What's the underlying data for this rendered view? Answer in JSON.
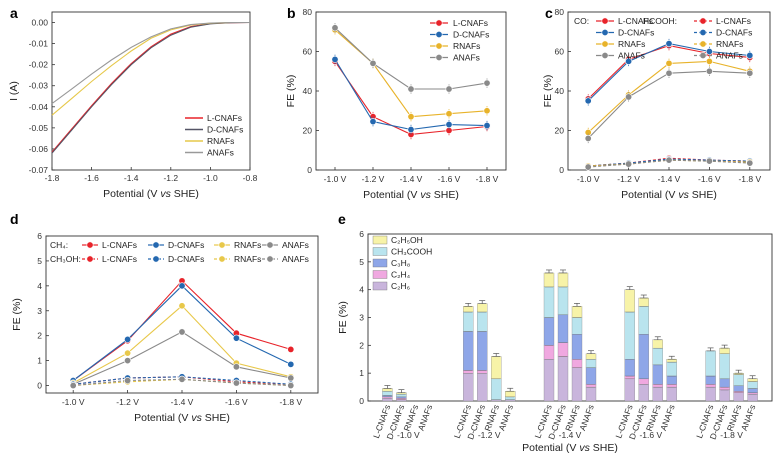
{
  "panels": [
    {
      "id": "a",
      "letter": "a",
      "chart_data": {
        "type": "line",
        "xlabel": "Potential (V vs SHE)",
        "ylabel": "I (A)",
        "xlim": [
          -1.8,
          -0.8
        ],
        "ylim": [
          -0.07,
          0.005
        ],
        "xticks": [
          "-1.8",
          "-1.6",
          "-1.4",
          "-1.2",
          "-1.0",
          "-0.8"
        ],
        "yticks": [
          "0.00",
          "-0.01",
          "-0.02",
          "-0.03",
          "-0.04",
          "-0.05",
          "-0.06",
          "-0.07"
        ],
        "series": [
          {
            "name": "L-CNAFs",
            "color": "#e8232a",
            "points": [
              [
                -1.8,
                -0.0615
              ],
              [
                -1.7,
                -0.0505
              ],
              [
                -1.6,
                -0.0395
              ],
              [
                -1.5,
                -0.029
              ],
              [
                -1.4,
                -0.0195
              ],
              [
                -1.3,
                -0.0115
              ],
              [
                -1.2,
                -0.0055
              ],
              [
                -1.1,
                -0.002
              ],
              [
                -1.0,
                -0.0005
              ],
              [
                -0.9,
                -0.0001
              ],
              [
                -0.8,
                0.0
              ]
            ]
          },
          {
            "name": "D-CNAFs",
            "color": "#555566",
            "points": [
              [
                -1.8,
                -0.062
              ],
              [
                -1.7,
                -0.051
              ],
              [
                -1.6,
                -0.04
              ],
              [
                -1.5,
                -0.0295
              ],
              [
                -1.4,
                -0.02
              ],
              [
                -1.3,
                -0.012
              ],
              [
                -1.2,
                -0.006
              ],
              [
                -1.1,
                -0.0022
              ],
              [
                -1.0,
                -0.0006
              ],
              [
                -0.9,
                -0.0001
              ],
              [
                -0.8,
                0.0
              ]
            ]
          },
          {
            "name": "RNAFs",
            "color": "#e6c84a",
            "points": [
              [
                -1.8,
                -0.044
              ],
              [
                -1.7,
                -0.036
              ],
              [
                -1.6,
                -0.028
              ],
              [
                -1.5,
                -0.0205
              ],
              [
                -1.4,
                -0.0135
              ],
              [
                -1.3,
                -0.0075
              ],
              [
                -1.2,
                -0.0035
              ],
              [
                -1.1,
                -0.0012
              ],
              [
                -1.0,
                -0.0003
              ],
              [
                -0.9,
                0.0
              ],
              [
                -0.8,
                0.0
              ]
            ]
          },
          {
            "name": "ANAFs",
            "color": "#999999",
            "points": [
              [
                -1.8,
                -0.0385
              ],
              [
                -1.7,
                -0.0315
              ],
              [
                -1.6,
                -0.0245
              ],
              [
                -1.5,
                -0.0178
              ],
              [
                -1.4,
                -0.0118
              ],
              [
                -1.3,
                -0.0068
              ],
              [
                -1.2,
                -0.003
              ],
              [
                -1.1,
                -0.001
              ],
              [
                -1.0,
                -0.0002
              ],
              [
                -0.9,
                0.0
              ],
              [
                -0.8,
                0.0
              ]
            ]
          }
        ]
      }
    },
    {
      "id": "b",
      "letter": "b",
      "chart_data": {
        "type": "line",
        "xlabel": "Potential (V vs SHE)",
        "ylabel": "FE (%)",
        "categories": [
          "-1.0 V",
          "-1.2 V",
          "-1.4 V",
          "-1.6 V",
          "-1.8 V"
        ],
        "ylim": [
          0,
          80
        ],
        "yticks": [
          "0",
          "20",
          "40",
          "60",
          "80"
        ],
        "series": [
          {
            "name": "L-CNAFs",
            "color": "#e8232a",
            "values": [
              55,
              27,
              18,
              20,
              22
            ]
          },
          {
            "name": "D-CNAFs",
            "color": "#2468b0",
            "values": [
              56,
              24.5,
              20.5,
              23,
              22.5
            ]
          },
          {
            "name": "RNAFs",
            "color": "#e8b32a",
            "values": [
              71,
              54,
              27,
              28.5,
              30
            ]
          },
          {
            "name": "ANAFs",
            "color": "#8a8a8a",
            "values": [
              72,
              54,
              41,
              41,
              44
            ]
          }
        ]
      }
    },
    {
      "id": "c",
      "letter": "c",
      "chart_data": {
        "type": "line",
        "xlabel": "Potential (V vs SHE)",
        "ylabel": "FE (%)",
        "categories": [
          "-1.0 V",
          "-1.2 V",
          "-1.4 V",
          "-1.6 V",
          "-1.8 V"
        ],
        "ylim": [
          0,
          80
        ],
        "yticks": [
          "0",
          "20",
          "40",
          "60",
          "80"
        ],
        "legend_groups": [
          "CO:",
          "HCOOH:"
        ],
        "series": [
          {
            "name": "L-CNAFs",
            "group": "CO",
            "color": "#e8232a",
            "values": [
              36,
              56,
              63,
              59,
              57
            ],
            "dashed": false
          },
          {
            "name": "D-CNAFs",
            "group": "CO",
            "color": "#2468b0",
            "values": [
              35,
              55,
              64,
              60,
              58
            ],
            "dashed": false
          },
          {
            "name": "RNAFs",
            "group": "CO",
            "color": "#e8b32a",
            "values": [
              19,
              38,
              54,
              55,
              50
            ],
            "dashed": false
          },
          {
            "name": "ANAFs",
            "group": "CO",
            "color": "#8a8a8a",
            "values": [
              16,
              37,
              49,
              50,
              49
            ],
            "dashed": false
          },
          {
            "name": "L-CNAFs",
            "group": "HCOOH",
            "color": "#e8232a",
            "values": [
              2,
              3.5,
              6,
              5,
              4.5
            ],
            "dashed": true
          },
          {
            "name": "D-CNAFs",
            "group": "HCOOH",
            "color": "#2468b0",
            "values": [
              2,
              3.5,
              5.5,
              5,
              4.5
            ],
            "dashed": true
          },
          {
            "name": "RNAFs",
            "group": "HCOOH",
            "color": "#e8b32a",
            "values": [
              2,
              3,
              5,
              4.5,
              4
            ],
            "dashed": true
          },
          {
            "name": "ANAFs",
            "group": "HCOOH",
            "color": "#8a8a8a",
            "values": [
              1.5,
              3,
              5,
              4.5,
              3.5
            ],
            "dashed": true
          }
        ]
      }
    },
    {
      "id": "d",
      "letter": "d",
      "chart_data": {
        "type": "line",
        "xlabel": "Potential (V vs SHE)",
        "ylabel": "FE (%)",
        "categories": [
          "-1.0 V",
          "-1.2 V",
          "-1.4 V",
          "-1.6 V",
          "-1.8 V"
        ],
        "ylim": [
          -0.3,
          6
        ],
        "yticks": [
          "0",
          "1",
          "2",
          "3",
          "4",
          "5",
          "6"
        ],
        "legend_groups": [
          "CH₄:",
          "CH₃OH:"
        ],
        "series": [
          {
            "name": "L-CNAFs",
            "group": "CH4",
            "color": "#e8232a",
            "values": [
              0.2,
              1.8,
              4.2,
              2.1,
              1.45
            ],
            "dashed": false
          },
          {
            "name": "D-CNAFs",
            "group": "CH4",
            "color": "#2468b0",
            "values": [
              0.2,
              1.85,
              4.0,
              1.9,
              0.85
            ],
            "dashed": false
          },
          {
            "name": "RNAFs",
            "group": "CH4",
            "color": "#e8c84a",
            "values": [
              0.1,
              1.3,
              3.2,
              0.9,
              0.35
            ],
            "dashed": false
          },
          {
            "name": "ANAFs",
            "group": "CH4",
            "color": "#8a8a8a",
            "values": [
              0.05,
              1.0,
              2.15,
              0.75,
              0.3
            ],
            "dashed": false
          },
          {
            "name": "L-CNAFs",
            "group": "CH3OH",
            "color": "#e8232a",
            "values": [
              0.05,
              0.3,
              0.35,
              0.15,
              0.05
            ],
            "dashed": true
          },
          {
            "name": "D-CNAFs",
            "group": "CH3OH",
            "color": "#2468b0",
            "values": [
              0.05,
              0.3,
              0.35,
              0.2,
              0.05
            ],
            "dashed": true
          },
          {
            "name": "RNAFs",
            "group": "CH3OH",
            "color": "#e8c84a",
            "values": [
              0.0,
              0.15,
              0.25,
              0.1,
              0.0
            ],
            "dashed": true
          },
          {
            "name": "ANAFs",
            "group": "CH3OH",
            "color": "#8a8a8a",
            "values": [
              0.0,
              0.2,
              0.25,
              0.1,
              0.0
            ],
            "dashed": true
          }
        ]
      }
    },
    {
      "id": "e",
      "letter": "e",
      "chart_data": {
        "type": "bar",
        "stacked": true,
        "xlabel": "Potential (V vs SHE)",
        "ylabel": "FE (%)",
        "ylim": [
          0,
          6
        ],
        "yticks": [
          "0",
          "1",
          "2",
          "3",
          "4",
          "5",
          "6"
        ],
        "groups": [
          "-1.0 V",
          "-1.2 V",
          "-1.4 V",
          "-1.6 V",
          "-1.8 V"
        ],
        "samples": [
          "L-CNAFs",
          "D-CNAFs",
          "RNAFs",
          "ANAFs"
        ],
        "stack_names": [
          "C₂H₆",
          "C₂H₄",
          "C₃H₈",
          "CH₃COOH",
          "C₂H₅OH"
        ],
        "stack_colors": [
          "#c9b5dc",
          "#f0a8e0",
          "#8ea6e8",
          "#b9e4ee",
          "#f7f3a8"
        ],
        "legend_order": [
          "C₂H₅OH",
          "CH₃COOH",
          "C₃H₈",
          "C₂H₄",
          "C₂H₆"
        ],
        "values": [
          [
            [
              0.1,
              0.05,
              0.05,
              0.15,
              0.1
            ],
            [
              0.05,
              0.05,
              0.05,
              0.1,
              0.05
            ],
            [
              0,
              0,
              0,
              0,
              0
            ],
            [
              0,
              0,
              0,
              0,
              0
            ]
          ],
          [
            [
              1.0,
              0.1,
              1.4,
              0.7,
              0.2
            ],
            [
              1.0,
              0.1,
              1.4,
              0.7,
              0.3
            ],
            [
              0.05,
              0,
              0,
              0.75,
              0.8
            ],
            [
              0.05,
              0,
              0,
              0.1,
              0.2
            ]
          ],
          [
            [
              1.5,
              0.5,
              1.0,
              1.1,
              0.5
            ],
            [
              1.6,
              0.5,
              1.0,
              1.0,
              0.5
            ],
            [
              1.2,
              0.3,
              0.9,
              0.6,
              0.4
            ],
            [
              0.5,
              0.1,
              0.6,
              0.3,
              0.2
            ]
          ],
          [
            [
              0.8,
              0.1,
              0.6,
              1.7,
              0.8
            ],
            [
              0.6,
              0.2,
              1.6,
              1.0,
              0.3
            ],
            [
              0.5,
              0.1,
              0.7,
              0.6,
              0.3
            ],
            [
              0.5,
              0.1,
              0.3,
              0.5,
              0.1
            ]
          ],
          [
            [
              0.5,
              0.1,
              0.3,
              0.9,
              0.0
            ],
            [
              0.4,
              0.1,
              0.3,
              0.9,
              0.2
            ],
            [
              0.3,
              0.05,
              0.2,
              0.4,
              0.05
            ],
            [
              0.25,
              0.05,
              0.15,
              0.25,
              0.1
            ]
          ]
        ]
      }
    }
  ]
}
